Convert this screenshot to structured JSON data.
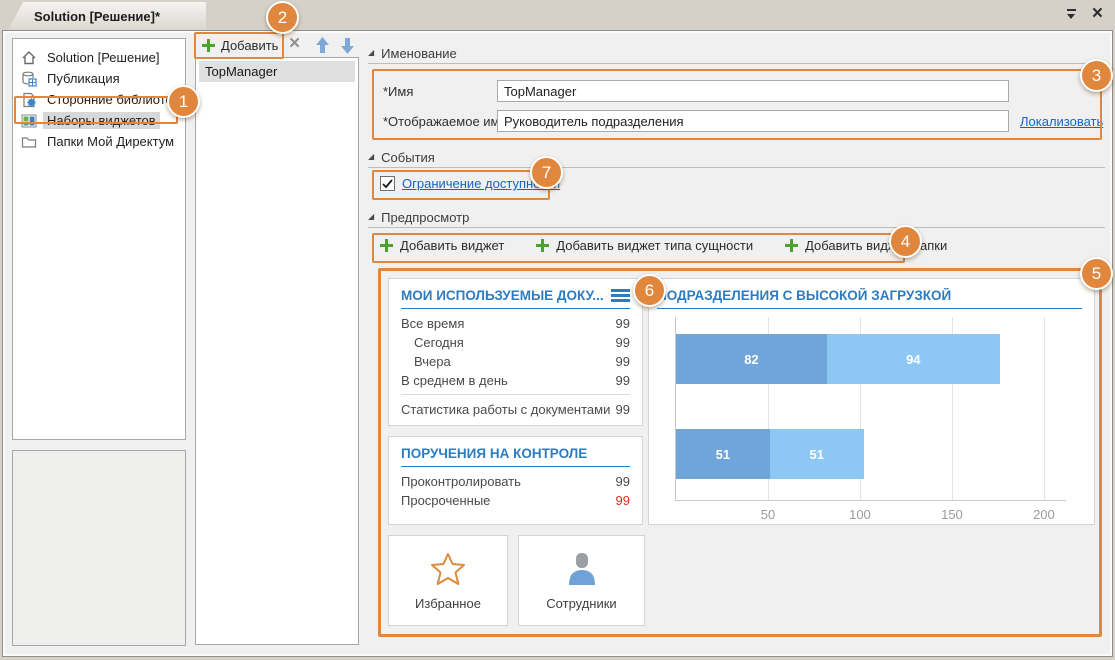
{
  "window": {
    "tab_title": "Solution [Решение]*"
  },
  "glyphs": {
    "close_icon": "×",
    "delete_icon": "×",
    "expander_icon": "◢"
  },
  "sidebar": {
    "items": [
      {
        "label": "Solution [Решение]",
        "icon": "home-icon"
      },
      {
        "label": "Публикация",
        "icon": "publication-icon"
      },
      {
        "label": "Сторонние библиотеки",
        "icon": "third-party-libraries-icon"
      },
      {
        "label": "Наборы виджетов",
        "icon": "widget-sets-icon",
        "selected": true
      },
      {
        "label": "Папки Мой Директум",
        "icon": "folder-icon"
      }
    ]
  },
  "list_panel": {
    "add_button": "Добавить",
    "items": [
      {
        "label": "TopManager",
        "selected": true
      }
    ]
  },
  "naming": {
    "section_title": "Именование",
    "name_label": "*Имя",
    "name_value": "TopManager",
    "display_name_label": "*Отображаемое имя",
    "display_name_value": "Руководитель подразделения",
    "localize_link": "Локализовать"
  },
  "events": {
    "section_title": "События",
    "restriction_label": "Ограничение доступности",
    "checked": true
  },
  "preview": {
    "section_title": "Предпросмотр",
    "add_widget": "Добавить виджет",
    "add_entity_widget": "Добавить виджет типа сущности",
    "add_folder_widget": "Добавить виджет папки"
  },
  "widgets": {
    "documents": {
      "title": "МОИ ИСПОЛЬЗУЕМЫЕ ДОКУ...",
      "rows": [
        {
          "label": "Все время",
          "value": "99",
          "indent": false
        },
        {
          "label": "Сегодня",
          "value": "99",
          "indent": true
        },
        {
          "label": "Вчера",
          "value": "99",
          "indent": true
        },
        {
          "label": "В среднем в день",
          "value": "99",
          "indent": false
        }
      ],
      "footer_label": "Статистика работы с документами",
      "footer_value": "99"
    },
    "assignments": {
      "title": "ПОРУЧЕНИЯ НА КОНТРОЛЕ",
      "rows": [
        {
          "label": "Проконтролировать",
          "value": "99",
          "alert": false
        },
        {
          "label": "Просроченные",
          "value": "99",
          "alert": true
        }
      ]
    },
    "favorites": {
      "label": "Избранное",
      "icon": "star-icon"
    },
    "employees": {
      "label": "Сотрудники",
      "icon": "person-icon"
    }
  },
  "chart_data": {
    "type": "bar",
    "orientation": "horizontal",
    "stacked": true,
    "title": "ПОДРАЗДЕЛЕНИЯ С ВЫСОКОЙ ЗАГРУЗКОЙ",
    "categories": [
      "",
      ""
    ],
    "series": [
      {
        "name": "segment-dark",
        "color": "#6FA5D8",
        "values": [
          82,
          51
        ]
      },
      {
        "name": "segment-light",
        "color": "#8DC7F4",
        "values": [
          94,
          51
        ]
      }
    ],
    "xticks": [
      50,
      100,
      150,
      200
    ],
    "xlim": [
      0,
      212
    ],
    "grid": true,
    "data_labels": true,
    "legend": "none"
  },
  "callouts": [
    "1",
    "2",
    "3",
    "4",
    "5",
    "6",
    "7"
  ],
  "colors": {
    "annotation_orange": "#E0873D",
    "widget_title_blue": "#2D7CC2",
    "link_blue": "#1565C0",
    "bar_dark": "#6FA5D8",
    "bar_light": "#8DC7F4",
    "alert_red": "#E02B20",
    "add_green": "#4AA32B"
  }
}
